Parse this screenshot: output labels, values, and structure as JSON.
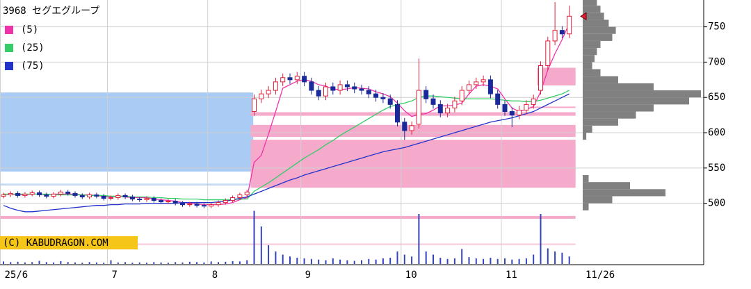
{
  "chart_data": {
    "type": "candlestick",
    "title": "3968 セグエグループ",
    "copyright": "(C) KABUDRAGON.COM",
    "date_label": "11/26",
    "categories": [
      "25/6",
      null,
      null,
      null,
      null,
      null,
      null,
      null,
      null,
      null,
      null,
      null,
      null,
      null,
      null,
      "7",
      null,
      null,
      null,
      null,
      null,
      null,
      null,
      null,
      null,
      null,
      null,
      null,
      null,
      "8",
      null,
      null,
      null,
      null,
      null,
      null,
      null,
      null,
      null,
      null,
      null,
      null,
      "9",
      null,
      null,
      null,
      null,
      null,
      null,
      null,
      null,
      null,
      null,
      null,
      null,
      null,
      "10",
      null,
      null,
      null,
      null,
      null,
      null,
      null,
      null,
      null,
      null,
      null,
      null,
      null,
      "11",
      null,
      null,
      null,
      null,
      null,
      null,
      null,
      null,
      null
    ],
    "open": [
      510,
      512,
      514,
      511,
      513,
      515,
      512,
      510,
      513,
      516,
      514,
      511,
      509,
      512,
      510,
      507,
      508,
      511,
      509,
      506,
      505,
      507,
      504,
      502,
      503,
      500,
      498,
      499,
      497,
      496,
      498,
      501,
      504,
      508,
      512,
      630,
      648,
      655,
      660,
      672,
      678,
      675,
      680,
      672,
      660,
      652,
      665,
      660,
      668,
      665,
      662,
      660,
      655,
      650,
      648,
      640,
      615,
      603,
      612,
      660,
      648,
      640,
      628,
      635,
      645,
      660,
      668,
      672,
      675,
      655,
      640,
      630,
      625,
      632,
      640,
      660,
      695,
      730,
      745,
      740
    ],
    "high": [
      515,
      517,
      517,
      516,
      518,
      518,
      515,
      516,
      519,
      519,
      517,
      514,
      515,
      515,
      513,
      511,
      514,
      514,
      512,
      509,
      510,
      510,
      507,
      506,
      506,
      503,
      502,
      502,
      500,
      501,
      504,
      507,
      511,
      515,
      519,
      654,
      661,
      666,
      678,
      684,
      684,
      686,
      686,
      678,
      666,
      671,
      671,
      674,
      674,
      671,
      668,
      666,
      661,
      656,
      654,
      646,
      621,
      616,
      705,
      666,
      654,
      646,
      641,
      651,
      666,
      674,
      678,
      681,
      681,
      661,
      646,
      636,
      638,
      646,
      654,
      701,
      736,
      785,
      751,
      780
    ],
    "low": [
      507,
      509,
      508,
      508,
      510,
      509,
      507,
      507,
      510,
      511,
      508,
      506,
      506,
      507,
      504,
      504,
      505,
      506,
      503,
      502,
      502,
      501,
      499,
      499,
      497,
      495,
      495,
      494,
      493,
      493,
      495,
      498,
      501,
      505,
      509,
      624,
      642,
      649,
      654,
      666,
      669,
      669,
      666,
      654,
      646,
      646,
      654,
      654,
      659,
      656,
      654,
      649,
      644,
      642,
      634,
      609,
      590,
      597,
      606,
      642,
      634,
      622,
      622,
      629,
      639,
      654,
      662,
      666,
      649,
      634,
      624,
      608,
      619,
      626,
      634,
      654,
      689,
      724,
      734,
      734
    ],
    "close": [
      512,
      514,
      511,
      513,
      515,
      512,
      510,
      513,
      516,
      514,
      511,
      509,
      512,
      510,
      507,
      508,
      511,
      509,
      506,
      505,
      507,
      504,
      502,
      503,
      500,
      498,
      499,
      497,
      496,
      498,
      501,
      504,
      508,
      512,
      516,
      648,
      655,
      660,
      672,
      678,
      675,
      680,
      672,
      660,
      652,
      665,
      660,
      668,
      665,
      662,
      660,
      655,
      650,
      648,
      640,
      615,
      603,
      610,
      660,
      648,
      640,
      628,
      635,
      645,
      660,
      668,
      672,
      675,
      655,
      640,
      630,
      625,
      632,
      640,
      648,
      695,
      730,
      745,
      740,
      765
    ],
    "up_color": "#e0203a",
    "down_color": "#1a2a9a",
    "volume": [
      40,
      30,
      35,
      25,
      30,
      50,
      30,
      25,
      45,
      30,
      25,
      20,
      30,
      25,
      20,
      60,
      25,
      30,
      20,
      25,
      20,
      30,
      25,
      20,
      30,
      25,
      35,
      30,
      25,
      40,
      30,
      35,
      45,
      40,
      60,
      850,
      600,
      300,
      200,
      150,
      120,
      100,
      90,
      80,
      70,
      60,
      90,
      70,
      60,
      50,
      60,
      80,
      70,
      90,
      100,
      200,
      150,
      120,
      800,
      200,
      150,
      100,
      80,
      90,
      240,
      110,
      90,
      80,
      100,
      80,
      90,
      70,
      80,
      90,
      150,
      800,
      250,
      200,
      180,
      120
    ],
    "volume_color": "#3344bb",
    "volume_ylim": [
      0,
      1000
    ],
    "series": [
      {
        "name": "(5)",
        "color": "#ee33aa",
        "values": [
          512,
          513,
          512,
          512,
          513,
          513,
          512,
          513,
          513,
          513,
          513,
          512,
          512,
          511,
          510,
          509,
          510,
          509,
          508,
          508,
          508,
          506,
          505,
          504,
          503,
          501,
          500,
          499,
          498,
          498,
          498,
          499,
          501,
          505,
          508,
          558,
          568,
          598,
          630,
          663,
          668,
          673,
          675,
          673,
          668,
          666,
          662,
          661,
          662,
          664,
          663,
          662,
          658,
          655,
          651,
          642,
          631,
          623,
          626,
          627,
          632,
          638,
          638,
          639,
          642,
          655,
          666,
          668,
          666,
          662,
          648,
          635,
          630,
          633,
          637,
          658,
          689,
          712,
          732,
          755
        ]
      },
      {
        "name": "(25)",
        "color": "#33cc66",
        "values": [
          513,
          513,
          513,
          513,
          513,
          513,
          513,
          512,
          512,
          512,
          512,
          512,
          511,
          511,
          511,
          510,
          510,
          510,
          509,
          509,
          509,
          508,
          508,
          507,
          507,
          506,
          506,
          506,
          505,
          505,
          505,
          505,
          505,
          506,
          506,
          517,
          523,
          529,
          536,
          543,
          550,
          557,
          564,
          570,
          576,
          583,
          589,
          596,
          602,
          608,
          614,
          620,
          626,
          632,
          637,
          640,
          642,
          645,
          650,
          652,
          652,
          651,
          650,
          649,
          648,
          648,
          648,
          648,
          648,
          647,
          646,
          645,
          645,
          644,
          644,
          646,
          649,
          652,
          655,
          660
        ]
      },
      {
        "name": "(75)",
        "color": "#2233cc",
        "values": [
          497,
          493,
          490,
          488,
          488,
          489,
          490,
          491,
          492,
          493,
          494,
          495,
          496,
          497,
          497,
          498,
          498,
          499,
          499,
          499,
          500,
          500,
          500,
          500,
          500,
          501,
          501,
          501,
          501,
          501,
          502,
          503,
          505,
          507,
          509,
          513,
          517,
          521,
          525,
          529,
          533,
          536,
          540,
          543,
          546,
          549,
          552,
          555,
          558,
          561,
          564,
          567,
          570,
          573,
          575,
          577,
          579,
          582,
          585,
          588,
          591,
          594,
          597,
          600,
          603,
          606,
          609,
          612,
          615,
          617,
          619,
          621,
          624,
          627,
          630,
          635,
          640,
          645,
          650,
          655
        ]
      }
    ],
    "zones": [
      {
        "color": "#aaccf4",
        "low": 545,
        "high": 657,
        "start": 0,
        "end": 34
      },
      {
        "color": "#c8dcf4",
        "low": 525,
        "high": 528,
        "start": 0,
        "end": 34
      },
      {
        "color": "#f5aacb",
        "low": 522,
        "high": 590,
        "start": 35,
        "end": 79
      },
      {
        "color": "#f5aacb",
        "low": 594,
        "high": 611,
        "start": 35,
        "end": 79
      },
      {
        "color": "#f5aacb",
        "low": 624,
        "high": 629,
        "start": 35,
        "end": 79
      },
      {
        "color": "#f5aacb",
        "low": 635,
        "high": 637,
        "start": 74,
        "end": 79
      },
      {
        "color": "#f5aacb",
        "low": 667,
        "high": 692,
        "start": 75,
        "end": 79
      },
      {
        "color": "#f5aacb",
        "low": 478,
        "high": 482,
        "start": 0,
        "end": 79
      },
      {
        "color": "#f5c8dc",
        "low": 441,
        "high": 443,
        "start": 0,
        "end": 79
      }
    ],
    "volume_profile": {
      "color": "#808080",
      "bins": [
        490,
        500,
        510,
        520,
        530,
        540,
        550,
        560,
        570,
        580,
        590,
        600,
        610,
        620,
        630,
        640,
        650,
        660,
        670,
        680,
        690,
        700,
        710,
        720,
        730,
        740,
        750,
        760,
        770,
        780,
        790
      ],
      "values": [
        5,
        25,
        70,
        40,
        5,
        0,
        0,
        0,
        0,
        0,
        3,
        8,
        30,
        45,
        60,
        90,
        100,
        60,
        30,
        15,
        8,
        10,
        12,
        15,
        25,
        28,
        22,
        18,
        15,
        12
      ]
    },
    "ylim": [
      414,
      788
    ],
    "yticks": [
      500,
      550,
      600,
      650,
      700,
      750
    ],
    "grid": true
  }
}
